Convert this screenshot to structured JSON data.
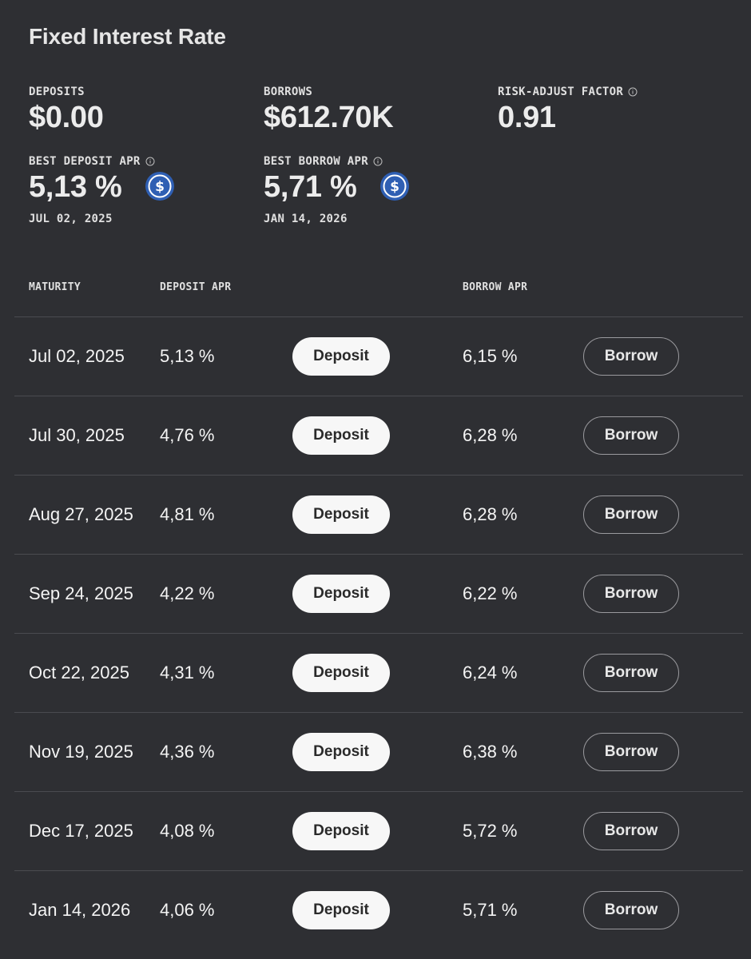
{
  "page_title": "Fixed Interest Rate",
  "stats": {
    "deposits": {
      "label": "DEPOSITS",
      "value": "$0.00"
    },
    "borrows": {
      "label": "BORROWS",
      "value": "$612.70K"
    },
    "risk_adjust_factor": {
      "label": "RISK-ADJUST FACTOR",
      "value": "0.91",
      "icon": "info-icon"
    },
    "best_deposit_apr": {
      "label": "BEST DEPOSIT APR",
      "value": "5,13 %",
      "date": "JUL 02, 2025",
      "icon": "info-icon",
      "token_icon": "usdc-coin-icon"
    },
    "best_borrow_apr": {
      "label": "BEST BORROW APR",
      "value": "5,71 %",
      "date": "JAN 14, 2026",
      "icon": "info-icon",
      "token_icon": "usdc-coin-icon"
    }
  },
  "table": {
    "headers": {
      "maturity": "MATURITY",
      "deposit_apr": "DEPOSIT APR",
      "borrow_apr": "BORROW APR"
    },
    "deposit_button_label": "Deposit",
    "borrow_button_label": "Borrow",
    "rows": [
      {
        "maturity": "Jul 02, 2025",
        "deposit_apr": "5,13 %",
        "borrow_apr": "6,15 %"
      },
      {
        "maturity": "Jul 30, 2025",
        "deposit_apr": "4,76 %",
        "borrow_apr": "6,28 %"
      },
      {
        "maturity": "Aug 27, 2025",
        "deposit_apr": "4,81 %",
        "borrow_apr": "6,28 %"
      },
      {
        "maturity": "Sep 24, 2025",
        "deposit_apr": "4,22 %",
        "borrow_apr": "6,22 %"
      },
      {
        "maturity": "Oct 22, 2025",
        "deposit_apr": "4,31 %",
        "borrow_apr": "6,24 %"
      },
      {
        "maturity": "Nov 19, 2025",
        "deposit_apr": "4,36 %",
        "borrow_apr": "6,38 %"
      },
      {
        "maturity": "Dec 17, 2025",
        "deposit_apr": "4,08 %",
        "borrow_apr": "5,72 %"
      },
      {
        "maturity": "Jan 14, 2026",
        "deposit_apr": "4,06 %",
        "borrow_apr": "5,71 %"
      }
    ]
  },
  "colors": {
    "background": "#2e2f33",
    "divider": "#4a4b50",
    "deposit_button_bg": "#f7f7f7",
    "borrow_button_border": "#9a9a9e",
    "coin_blue": "#2f5fb3"
  }
}
